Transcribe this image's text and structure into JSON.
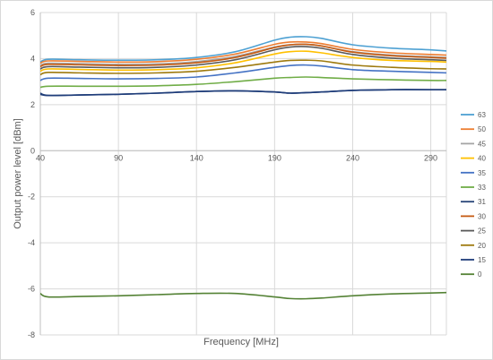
{
  "chart_data": {
    "type": "line",
    "xlabel": "Frequency [MHz]",
    "ylabel": "Output power level [dBm]",
    "xlim": [
      40,
      300
    ],
    "ylim": [
      -8,
      6
    ],
    "x_ticks": [
      40,
      90,
      140,
      190,
      240,
      290
    ],
    "y_ticks": [
      -8,
      -6,
      -4,
      -2,
      0,
      2,
      4,
      6
    ],
    "grid": true,
    "legend_position": "right",
    "x": [
      40,
      45,
      65,
      90,
      115,
      140,
      165,
      190,
      200,
      210,
      220,
      240,
      265,
      290,
      300
    ],
    "series": [
      {
        "name": "63",
        "color": "#4ea1d3",
        "values": [
          3.85,
          3.97,
          3.95,
          3.93,
          3.95,
          4.05,
          4.3,
          4.8,
          4.93,
          4.95,
          4.88,
          4.6,
          4.45,
          4.38,
          4.33
        ]
      },
      {
        "name": "50",
        "color": "#ed7d31",
        "values": [
          3.8,
          3.9,
          3.88,
          3.85,
          3.87,
          3.97,
          4.2,
          4.62,
          4.72,
          4.72,
          4.65,
          4.4,
          4.25,
          4.18,
          4.15
        ]
      },
      {
        "name": "45",
        "color": "#a5a5a5",
        "values": [
          3.7,
          3.8,
          3.78,
          3.75,
          3.77,
          3.87,
          4.1,
          4.5,
          4.6,
          4.62,
          4.55,
          4.3,
          4.15,
          4.08,
          4.05
        ]
      },
      {
        "name": "40",
        "color": "#ffc000",
        "values": [
          3.45,
          3.55,
          3.53,
          3.5,
          3.52,
          3.6,
          3.82,
          4.2,
          4.3,
          4.32,
          4.25,
          4.05,
          3.92,
          3.88,
          3.85
        ]
      },
      {
        "name": "35",
        "color": "#4472c4",
        "values": [
          3.05,
          3.15,
          3.14,
          3.12,
          3.14,
          3.2,
          3.38,
          3.62,
          3.7,
          3.72,
          3.68,
          3.52,
          3.45,
          3.4,
          3.38
        ]
      },
      {
        "name": "33",
        "color": "#70ad47",
        "values": [
          2.75,
          2.8,
          2.8,
          2.8,
          2.82,
          2.88,
          3.0,
          3.15,
          3.18,
          3.2,
          3.18,
          3.12,
          3.08,
          3.05,
          3.05
        ]
      },
      {
        "name": "31",
        "color": "#264478",
        "values": [
          2.5,
          2.4,
          2.42,
          2.45,
          2.5,
          2.57,
          2.6,
          2.55,
          2.5,
          2.52,
          2.55,
          2.62,
          2.65,
          2.65,
          2.65
        ]
      },
      {
        "name": "30",
        "color": "#c55a11",
        "values": [
          3.65,
          3.75,
          3.73,
          3.7,
          3.72,
          3.82,
          4.05,
          4.48,
          4.6,
          4.62,
          4.55,
          4.28,
          4.12,
          4.05,
          4.02
        ]
      },
      {
        "name": "25",
        "color": "#5a5a5a",
        "values": [
          3.55,
          3.65,
          3.63,
          3.6,
          3.62,
          3.72,
          3.95,
          4.38,
          4.5,
          4.52,
          4.45,
          4.18,
          4.02,
          3.95,
          3.92
        ]
      },
      {
        "name": "20",
        "color": "#9e7a0e",
        "values": [
          3.3,
          3.4,
          3.38,
          3.36,
          3.38,
          3.45,
          3.62,
          3.85,
          3.92,
          3.93,
          3.9,
          3.72,
          3.62,
          3.56,
          3.55
        ]
      },
      {
        "name": "15",
        "color": "#1f3d7a",
        "values": [
          2.45,
          2.4,
          2.42,
          2.45,
          2.5,
          2.57,
          2.6,
          2.55,
          2.5,
          2.52,
          2.55,
          2.62,
          2.65,
          2.65,
          2.65
        ]
      },
      {
        "name": "0",
        "color": "#548235",
        "values": [
          -6.2,
          -6.35,
          -6.33,
          -6.3,
          -6.25,
          -6.2,
          -6.2,
          -6.35,
          -6.42,
          -6.43,
          -6.4,
          -6.3,
          -6.22,
          -6.18,
          -6.16
        ]
      }
    ]
  }
}
